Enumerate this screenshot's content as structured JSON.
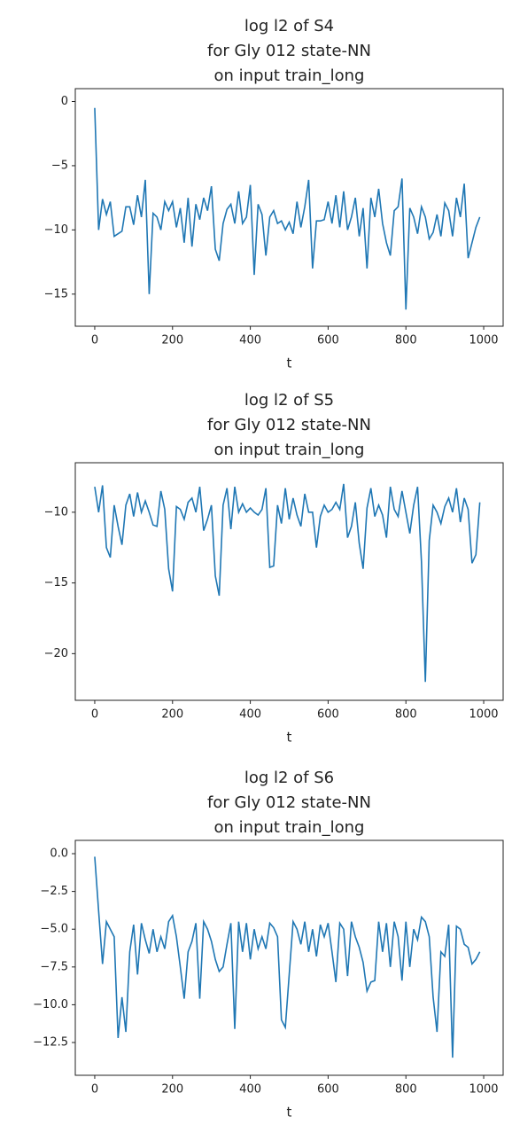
{
  "chart_data": [
    {
      "type": "line",
      "title": [
        "log l2 of S4",
        "for Gly 012 state-NN",
        "on input train_long"
      ],
      "xlabel": "t",
      "x": [
        0,
        10,
        20,
        30,
        40,
        50,
        60,
        70,
        80,
        90,
        100,
        110,
        120,
        130,
        140,
        150,
        160,
        170,
        180,
        190,
        200,
        210,
        220,
        230,
        240,
        250,
        260,
        270,
        280,
        290,
        300,
        310,
        320,
        330,
        340,
        350,
        360,
        370,
        380,
        390,
        400,
        410,
        420,
        430,
        440,
        450,
        460,
        470,
        480,
        490,
        500,
        510,
        520,
        530,
        540,
        550,
        560,
        570,
        580,
        590,
        600,
        610,
        620,
        630,
        640,
        650,
        660,
        670,
        680,
        690,
        700,
        710,
        720,
        730,
        740,
        750,
        760,
        770,
        780,
        790,
        800,
        810,
        820,
        830,
        840,
        850,
        860,
        870,
        880,
        890,
        900,
        910,
        920,
        930,
        940,
        950,
        960,
        970,
        980,
        990
      ],
      "series": [
        {
          "name": "S4",
          "color": "#1f77b4",
          "values": [
            -0.5,
            -10,
            -7.6,
            -8.8,
            -7.8,
            -10.5,
            -10.3,
            -10.1,
            -8.2,
            -8.2,
            -9.6,
            -7.3,
            -9,
            -6.1,
            -15,
            -8.7,
            -9,
            -10,
            -7.8,
            -8.5,
            -7.8,
            -9.8,
            -8.3,
            -11,
            -7.5,
            -11.3,
            -8,
            -9.2,
            -7.5,
            -8.5,
            -6.6,
            -11.5,
            -12.4,
            -9.5,
            -8.4,
            -8,
            -9.5,
            -7,
            -9.5,
            -9,
            -6.5,
            -13.5,
            -8,
            -8.8,
            -12,
            -9,
            -8.5,
            -9.5,
            -9.3,
            -10,
            -9.4,
            -10.3,
            -7.8,
            -9.8,
            -8.2,
            -6.1,
            -13,
            -9.3,
            -9.3,
            -9.2,
            -7.8,
            -9.5,
            -7.3,
            -9.8,
            -7,
            -10,
            -9,
            -7.5,
            -10.5,
            -8.3,
            -13,
            -7.5,
            -9,
            -6.8,
            -9.5,
            -11,
            -12,
            -8.5,
            -8.2,
            -6,
            -16.2,
            -8.3,
            -9,
            -10.3,
            -8.2,
            -9,
            -10.7,
            -10.2,
            -8.8,
            -10.5,
            -7.9,
            -8.5,
            -10.5,
            -7.5,
            -9,
            -6.4,
            -12.2,
            -11,
            -9.8,
            -9
          ]
        }
      ],
      "xlim": [
        -50,
        1050
      ],
      "xticks": [
        0,
        200,
        400,
        600,
        800,
        1000
      ],
      "ylim": [
        -17.5,
        1.0
      ],
      "yticks": [
        0,
        {
          "value": -5,
          "label": "−5"
        },
        {
          "value": -10,
          "label": "−10"
        },
        {
          "value": -15,
          "label": "−15"
        }
      ]
    },
    {
      "type": "line",
      "title": [
        "log l2 of S5",
        "for Gly 012 state-NN",
        "on input train_long"
      ],
      "xlabel": "t",
      "x": [
        0,
        10,
        20,
        30,
        40,
        50,
        60,
        70,
        80,
        90,
        100,
        110,
        120,
        130,
        140,
        150,
        160,
        170,
        180,
        190,
        200,
        210,
        220,
        230,
        240,
        250,
        260,
        270,
        280,
        290,
        300,
        310,
        320,
        330,
        340,
        350,
        360,
        370,
        380,
        390,
        400,
        410,
        420,
        430,
        440,
        450,
        460,
        470,
        480,
        490,
        500,
        510,
        520,
        530,
        540,
        550,
        560,
        570,
        580,
        590,
        600,
        610,
        620,
        630,
        640,
        650,
        660,
        670,
        680,
        690,
        700,
        710,
        720,
        730,
        740,
        750,
        760,
        770,
        780,
        790,
        800,
        810,
        820,
        830,
        840,
        850,
        860,
        870,
        880,
        890,
        900,
        910,
        920,
        930,
        940,
        950,
        960,
        970,
        980,
        990
      ],
      "series": [
        {
          "name": "S5",
          "color": "#1f77b4",
          "values": [
            -8.2,
            -10,
            -8.1,
            -12.5,
            -13.2,
            -9.5,
            -11,
            -12.3,
            -9.5,
            -8.7,
            -10.3,
            -8.6,
            -10,
            -9.2,
            -10,
            -10.9,
            -11,
            -8.5,
            -9.8,
            -14,
            -15.6,
            -9.6,
            -9.8,
            -10.5,
            -9.3,
            -9,
            -10,
            -8.2,
            -11.3,
            -10.5,
            -9.5,
            -14.5,
            -15.9,
            -9.5,
            -8.3,
            -11.2,
            -8.2,
            -10,
            -9.4,
            -10,
            -9.7,
            -10,
            -10.2,
            -9.8,
            -8.3,
            -13.9,
            -13.8,
            -9.5,
            -10.8,
            -8.3,
            -10.5,
            -9,
            -10.2,
            -11,
            -8.7,
            -10,
            -10,
            -12.5,
            -10.3,
            -9.5,
            -10,
            -9.8,
            -9.3,
            -9.8,
            -8,
            -11.8,
            -11,
            -9.3,
            -12.2,
            -14,
            -9.7,
            -8.3,
            -10.3,
            -9.5,
            -10.2,
            -11.8,
            -8.2,
            -9.8,
            -10.3,
            -8.5,
            -10,
            -11.5,
            -9.5,
            -8.2,
            -13.5,
            -22,
            -12,
            -9.5,
            -10,
            -10.8,
            -9.6,
            -9,
            -10,
            -8.3,
            -10.7,
            -9,
            -9.8,
            -13.6,
            -13,
            -9.3
          ]
        }
      ],
      "xlim": [
        -50,
        1050
      ],
      "xticks": [
        0,
        200,
        400,
        600,
        800,
        1000
      ],
      "ylim": [
        -23.3,
        -6.5
      ],
      "yticks": [
        {
          "value": -10,
          "label": "−10"
        },
        {
          "value": -15,
          "label": "−15"
        },
        {
          "value": -20,
          "label": "−20"
        }
      ]
    },
    {
      "type": "line",
      "title": [
        "log l2 of S6",
        "for Gly 012 state-NN",
        "on input train_long"
      ],
      "xlabel": "t",
      "x": [
        0,
        10,
        20,
        30,
        40,
        50,
        60,
        70,
        80,
        90,
        100,
        110,
        120,
        130,
        140,
        150,
        160,
        170,
        180,
        190,
        200,
        210,
        220,
        230,
        240,
        250,
        260,
        270,
        280,
        290,
        300,
        310,
        320,
        330,
        340,
        350,
        360,
        370,
        380,
        390,
        400,
        410,
        420,
        430,
        440,
        450,
        460,
        470,
        480,
        490,
        500,
        510,
        520,
        530,
        540,
        550,
        560,
        570,
        580,
        590,
        600,
        610,
        620,
        630,
        640,
        650,
        660,
        670,
        680,
        690,
        700,
        710,
        720,
        730,
        740,
        750,
        760,
        770,
        780,
        790,
        800,
        810,
        820,
        830,
        840,
        850,
        860,
        870,
        880,
        890,
        900,
        910,
        920,
        930,
        940,
        950,
        960,
        970,
        980,
        990
      ],
      "series": [
        {
          "name": "S6",
          "color": "#1f77b4",
          "values": [
            -0.2,
            -3.8,
            -7.3,
            -4.5,
            -5,
            -5.5,
            -12.2,
            -9.5,
            -11.8,
            -6.5,
            -4.7,
            -8,
            -4.6,
            -5.7,
            -6.6,
            -5,
            -6.5,
            -5.5,
            -6.3,
            -4.5,
            -4.1,
            -5.5,
            -7.5,
            -9.6,
            -6.5,
            -5.8,
            -4.6,
            -9.6,
            -4.5,
            -5,
            -5.8,
            -7,
            -7.8,
            -7.5,
            -6,
            -4.6,
            -11.6,
            -4.5,
            -6.5,
            -4.6,
            -7,
            -5,
            -6.3,
            -5.5,
            -6.3,
            -4.6,
            -4.9,
            -5.5,
            -11,
            -11.5,
            -8,
            -4.5,
            -5,
            -6,
            -4.5,
            -6.5,
            -5,
            -6.8,
            -4.7,
            -5.5,
            -4.6,
            -6.5,
            -8.5,
            -4.6,
            -5,
            -8.1,
            -4.5,
            -5.5,
            -6.2,
            -7.2,
            -9.1,
            -8.5,
            -8.4,
            -4.5,
            -6.5,
            -4.6,
            -7.5,
            -4.5,
            -5.5,
            -8.4,
            -4.5,
            -7.5,
            -5,
            -5.7,
            -4.2,
            -4.5,
            -5.5,
            -9.5,
            -11.8,
            -6.5,
            -6.8,
            -4.7,
            -13.5,
            -4.8,
            -5,
            -6,
            -6.2,
            -7.3,
            -7,
            -6.5
          ]
        }
      ],
      "xlim": [
        -50,
        1050
      ],
      "xticks": [
        0,
        200,
        400,
        600,
        800,
        1000
      ],
      "ylim": [
        -14.67,
        0.88
      ],
      "yticks": [
        {
          "value": 0,
          "label": "0.0"
        },
        {
          "value": -2.5,
          "label": "−2.5"
        },
        {
          "value": -5,
          "label": "−5.0"
        },
        {
          "value": -7.5,
          "label": "−7.5"
        },
        {
          "value": -10,
          "label": "−10.0"
        },
        {
          "value": -12.5,
          "label": "−12.5"
        }
      ]
    }
  ]
}
